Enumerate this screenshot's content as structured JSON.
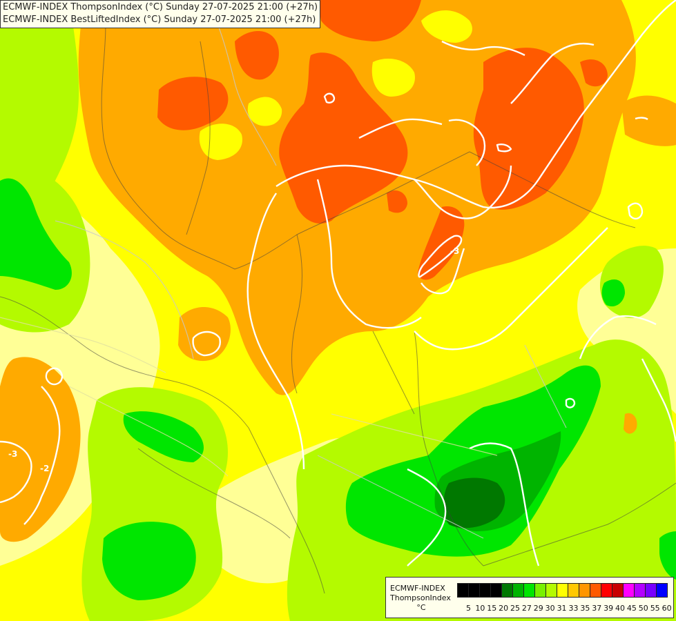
{
  "header": {
    "line1": "ECMWF-INDEX ThompsonIndex (°C) Sunday 27-07-2025 21:00 (+27h)",
    "line2": "ECMWF-INDEX BestLiftedIndex (°C) Sunday 27-07-2025 21:00 (+27h)"
  },
  "legend": {
    "title_line1": "ECMWF-INDEX",
    "title_line2": "ThompsonIndex",
    "unit": "°C",
    "levels": [
      "5",
      "10",
      "15",
      "20",
      "25",
      "27",
      "29",
      "30",
      "31",
      "33",
      "35",
      "37",
      "39",
      "40",
      "45",
      "50",
      "55",
      "60"
    ],
    "colors": [
      "#000000",
      "#000000",
      "#000000",
      "#000000",
      "#007800",
      "#00b400",
      "#00e600",
      "#78f000",
      "#b4fa00",
      "#ffff00",
      "#ffc800",
      "#ff9600",
      "#ff5a00",
      "#ff0000",
      "#c80000",
      "#ff00ff",
      "#b400ff",
      "#7800ff",
      "#0000ff"
    ]
  },
  "contour_labels": [
    "-2",
    "-3",
    "-3"
  ],
  "palette": {
    "bg": "#ffff96",
    "light_yellow": "#ffff96",
    "yellow": "#ffff00",
    "orange": "#ffaa00",
    "red_orange": "#ff5a00",
    "yellow_green": "#b4fa00",
    "bright_green": "#00e600",
    "mid_green": "#00b400",
    "dark_green": "#007800",
    "isoline": "#ffffff",
    "border": "#404040",
    "river": "#b0b0b0"
  }
}
